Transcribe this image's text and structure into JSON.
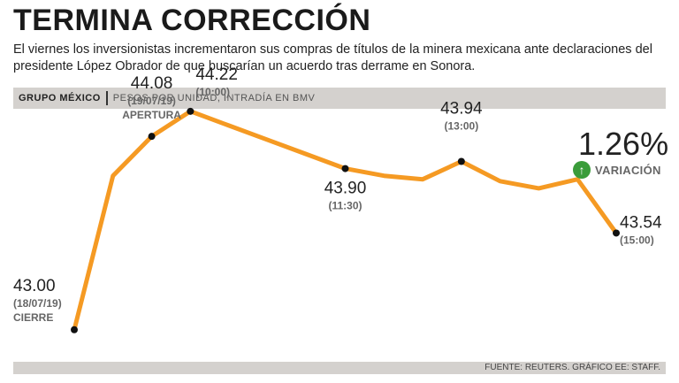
{
  "title": "TERMINA CORRECCIÓN",
  "subtitle": "El viernes los inversionistas incrementaron sus compras de títulos de la minera mexicana ante declaraciones del presidente López Obrador de que buscarían un acuerdo tras derrame en Sonora.",
  "header": {
    "company": "GRUPO MÉXICO",
    "units": "PESOS POR UNIDAD, INTRADÍA EN BMV"
  },
  "variation": {
    "value": "1.26%",
    "label": "VARIACIÓN",
    "icon": "arrow-up-icon"
  },
  "footer": "FUENTE: REUTERS. GRÁFICO EE: STAFF.",
  "colors": {
    "line": "#f59a23",
    "header_bg": "#d4d1ce",
    "up": "#3a9c3a"
  },
  "chart_data": {
    "type": "line",
    "ylim": [
      42.9,
      44.15
    ],
    "values": [
      43.0,
      43.86,
      44.08,
      44.22,
      44.14,
      44.06,
      43.98,
      43.9,
      43.86,
      43.84,
      43.94,
      43.83,
      43.79,
      43.84,
      43.54
    ],
    "labeled_points": [
      {
        "index": 0,
        "value": "43.00",
        "time": "(18/07/19)",
        "note": "CIERRE",
        "pos": "left-above"
      },
      {
        "index": 2,
        "value": "44.08",
        "time": "(19/07/19)",
        "note": "APERTURA",
        "pos": "above"
      },
      {
        "index": 3,
        "value": "44.22",
        "time": "(10:00)",
        "note": "",
        "pos": "right-above"
      },
      {
        "index": 7,
        "value": "43.90",
        "time": "(11:30)",
        "note": "",
        "pos": "below"
      },
      {
        "index": 10,
        "value": "43.94",
        "time": "(13:00)",
        "note": "",
        "pos": "above"
      },
      {
        "index": 14,
        "value": "43.54",
        "time": "(15:00)",
        "note": "",
        "pos": "right"
      }
    ]
  }
}
